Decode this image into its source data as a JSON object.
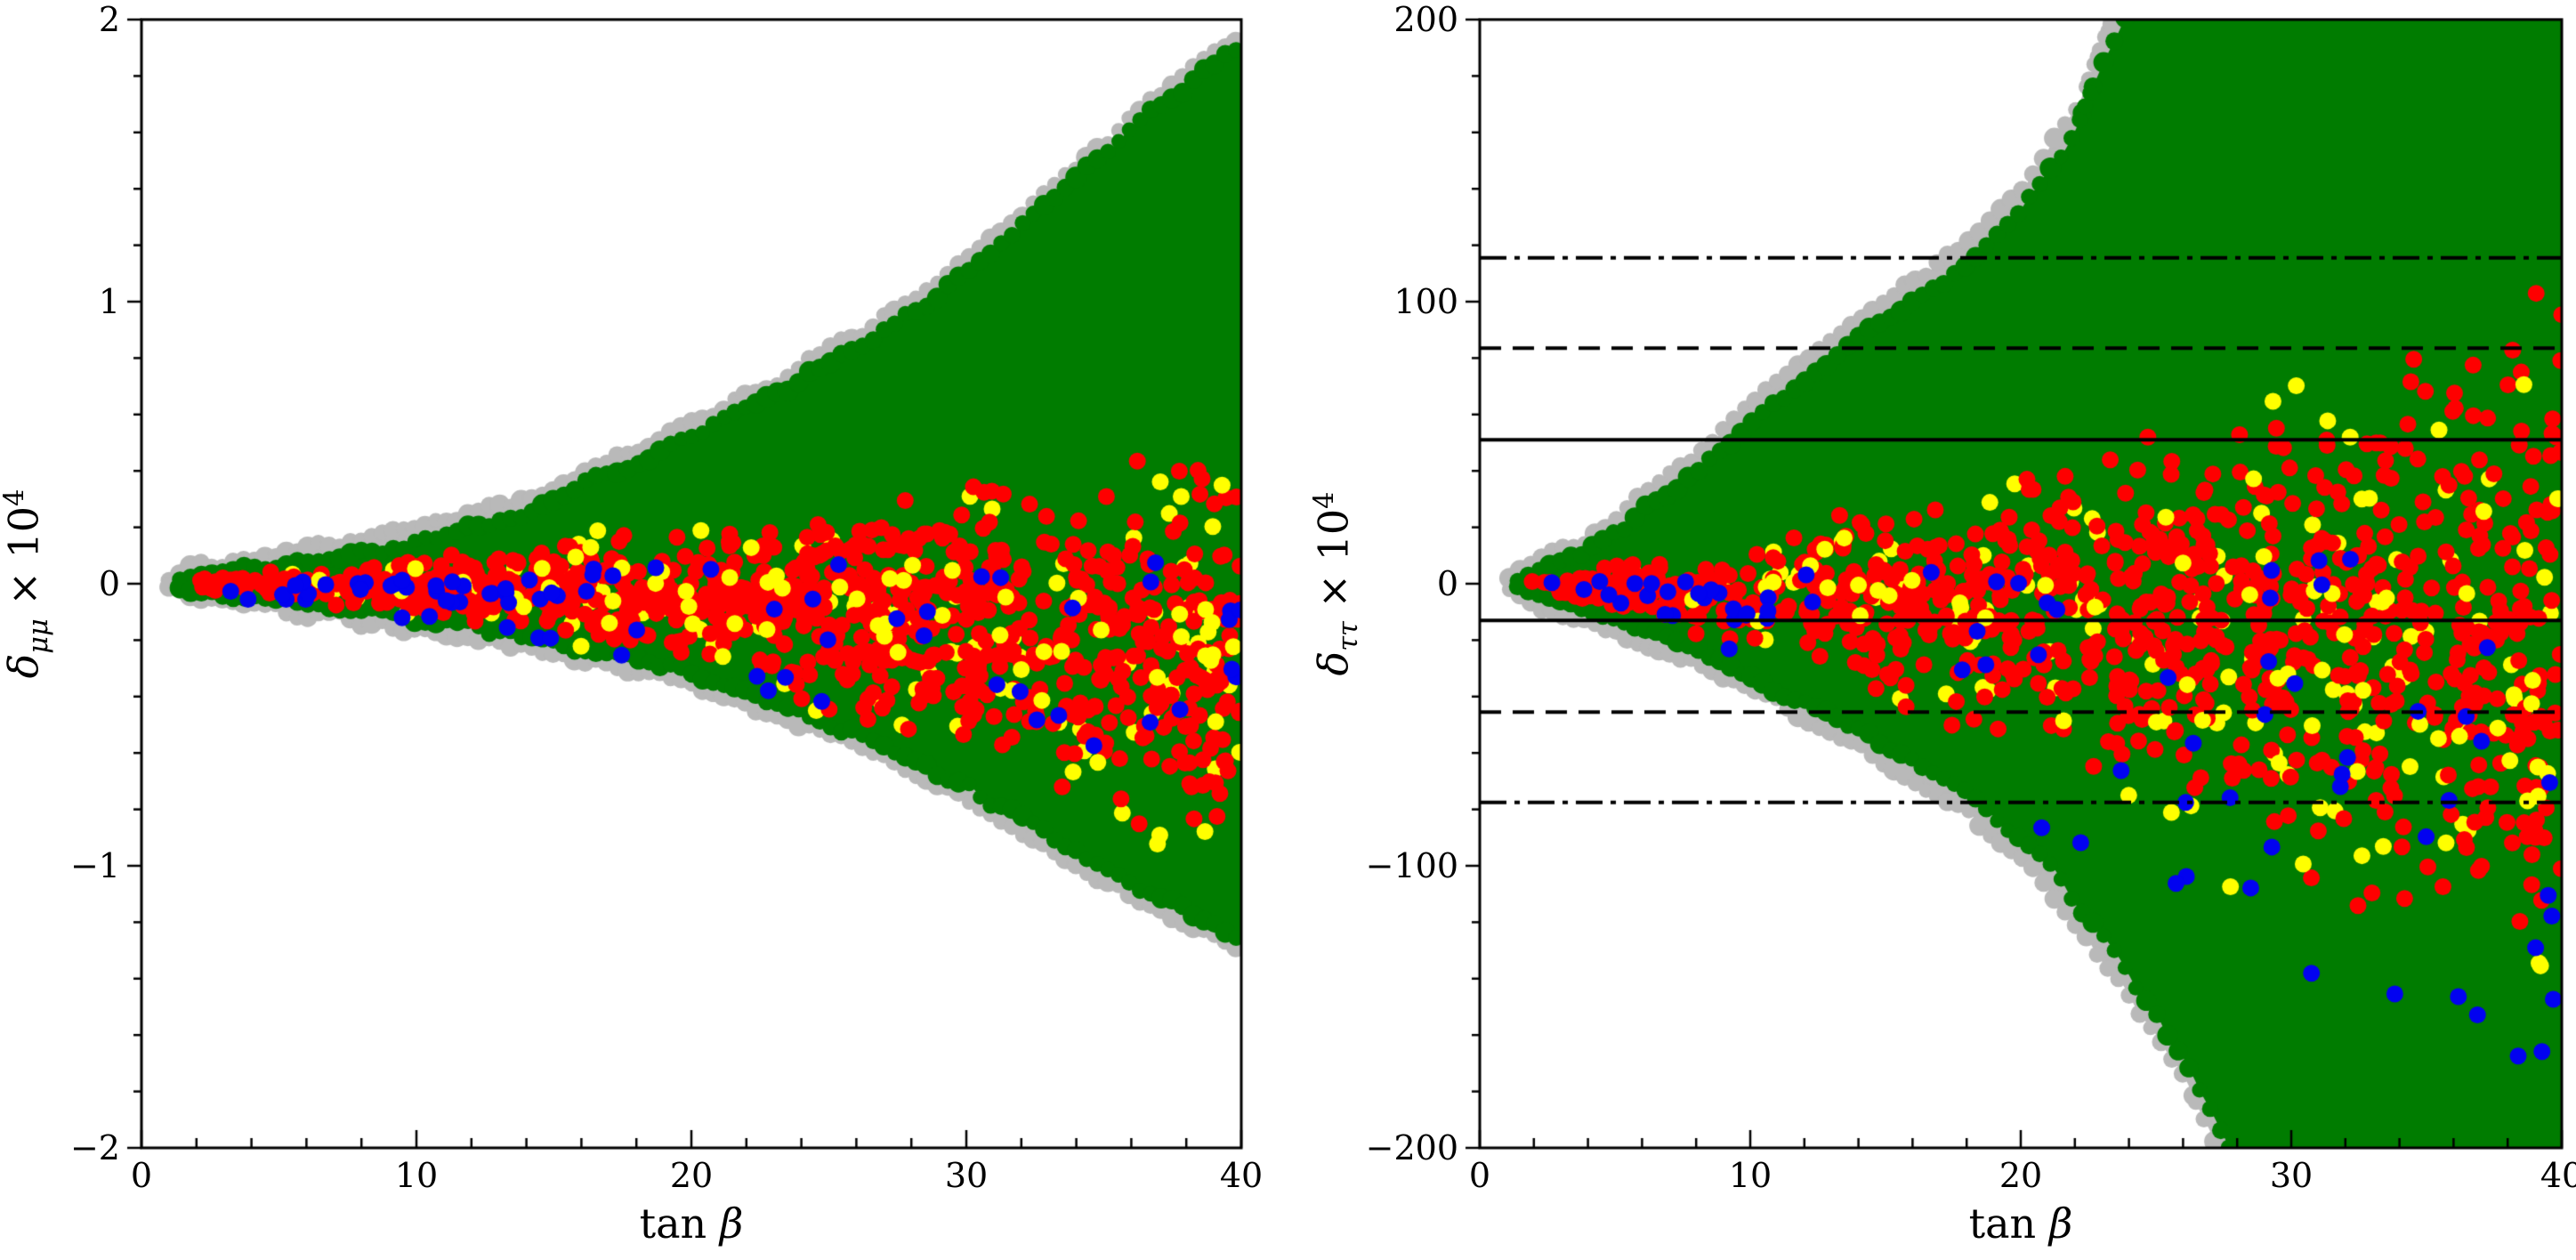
{
  "figure": {
    "background": "#ffffff",
    "frame_color": "#000000"
  },
  "chart_data": [
    {
      "id": "left",
      "type": "scatter",
      "xlabel": {
        "roman": "tan ",
        "italic": "β"
      },
      "ylabel": {
        "symbol": "δ",
        "sub": "μμ",
        "rest": " × 10",
        "exp": "4"
      },
      "xlim": [
        0,
        40
      ],
      "ylim": [
        -2,
        2
      ],
      "xticks": {
        "majors": [
          0,
          10,
          20,
          30,
          40
        ],
        "labels": [
          "0",
          "10",
          "20",
          "30",
          "40"
        ],
        "minor_step": 2
      },
      "yticks": {
        "majors": [
          2,
          1,
          0,
          -1,
          -2
        ],
        "labels": [
          "2",
          "1",
          "0",
          "−1",
          "−2"
        ],
        "minor_step": 0.2
      },
      "hlines": [],
      "seed": 13,
      "regions": [
        {
          "name": "gray-envelope",
          "color": "#b9b9b9",
          "t": [
            1.0,
            2,
            4,
            6,
            8,
            10,
            12,
            14,
            16,
            18,
            20,
            22,
            24,
            26,
            28,
            30,
            32,
            34,
            36,
            38,
            40
          ],
          "hi": [
            0.012,
            0.055,
            0.085,
            0.115,
            0.15,
            0.19,
            0.245,
            0.305,
            0.39,
            0.47,
            0.565,
            0.665,
            0.765,
            0.885,
            1.005,
            1.155,
            1.31,
            1.48,
            1.65,
            1.81,
            1.95
          ],
          "lo": [
            -0.012,
            -0.055,
            -0.08,
            -0.1,
            -0.13,
            -0.16,
            -0.19,
            -0.23,
            -0.27,
            -0.31,
            -0.36,
            -0.425,
            -0.495,
            -0.575,
            -0.665,
            -0.765,
            -0.885,
            -1.0,
            -1.1,
            -1.2,
            -1.29
          ]
        },
        {
          "name": "green-region",
          "color": "#007c00",
          "t": [
            1.4,
            2,
            4,
            6,
            8,
            10,
            12,
            14,
            16,
            18,
            20,
            22,
            24,
            26,
            28,
            30,
            32,
            34,
            36,
            38,
            40
          ],
          "hi": [
            0.015,
            0.03,
            0.055,
            0.08,
            0.11,
            0.15,
            0.2,
            0.26,
            0.35,
            0.43,
            0.52,
            0.62,
            0.72,
            0.84,
            0.96,
            1.11,
            1.27,
            1.44,
            1.61,
            1.77,
            1.91
          ],
          "lo": [
            -0.015,
            -0.03,
            -0.05,
            -0.07,
            -0.095,
            -0.12,
            -0.15,
            -0.19,
            -0.23,
            -0.27,
            -0.32,
            -0.38,
            -0.45,
            -0.53,
            -0.62,
            -0.72,
            -0.84,
            -0.96,
            -1.06,
            -1.16,
            -1.25
          ]
        }
      ],
      "scatter": [
        {
          "name": "yellow-under",
          "color": "#ffff00",
          "count": 95,
          "r": 9.5,
          "tmin": 2.5,
          "tmax": 40,
          "tbias": 0.6,
          "dist": "tri",
          "t": [
            2,
            5,
            10,
            15,
            20,
            25,
            30,
            35,
            40
          ],
          "hi": [
            0.03,
            0.06,
            0.11,
            0.18,
            0.25,
            0.33,
            0.42,
            0.5,
            0.58
          ],
          "lo": [
            -0.035,
            -0.07,
            -0.13,
            -0.23,
            -0.38,
            -0.55,
            -0.75,
            -0.92,
            -1.08
          ]
        },
        {
          "name": "red",
          "color": "#fe0000",
          "count": 900,
          "r": 9.5,
          "tmin": 1.8,
          "tmax": 40,
          "tbias": 0.72,
          "dist": "tri",
          "t": [
            2,
            5,
            10,
            15,
            20,
            25,
            30,
            35,
            40
          ],
          "hi": [
            0.025,
            0.05,
            0.1,
            0.16,
            0.22,
            0.29,
            0.37,
            0.45,
            0.52
          ],
          "lo": [
            -0.03,
            -0.06,
            -0.11,
            -0.2,
            -0.33,
            -0.47,
            -0.63,
            -0.82,
            -1.0
          ]
        },
        {
          "name": "yellow-over",
          "color": "#ffff00",
          "count": 60,
          "r": 9.5,
          "tmin": 6,
          "tmax": 40,
          "tbias": 0.6,
          "dist": "tri",
          "t": [
            2,
            5,
            10,
            15,
            20,
            25,
            30,
            35,
            40
          ],
          "hi": [
            0.03,
            0.06,
            0.11,
            0.18,
            0.25,
            0.33,
            0.42,
            0.5,
            0.58
          ],
          "lo": [
            -0.035,
            -0.07,
            -0.13,
            -0.23,
            -0.38,
            -0.55,
            -0.75,
            -0.92,
            -1.08
          ]
        },
        {
          "name": "blue-low-tanb",
          "color": "#0202f0",
          "count": 26,
          "r": 9.5,
          "tmin": 3,
          "tmax": 14,
          "tbias": 1,
          "dist": "uni",
          "t": [
            3,
            14
          ],
          "hi": [
            0.012,
            0.02
          ],
          "lo": [
            -0.06,
            -0.095
          ]
        },
        {
          "name": "blue-spread",
          "color": "#0202f0",
          "count": 48,
          "r": 9.5,
          "tmin": 9,
          "tmax": 40,
          "tbias": 0.8,
          "dist": "uni",
          "t": [
            9,
            20,
            30,
            40
          ],
          "hi": [
            0.04,
            0.06,
            0.08,
            0.1
          ],
          "lo": [
            -0.17,
            -0.34,
            -0.55,
            -0.78
          ]
        }
      ]
    },
    {
      "id": "right",
      "type": "scatter",
      "xlabel": {
        "roman": "tan ",
        "italic": "β"
      },
      "ylabel": {
        "symbol": "δ",
        "sub": "ττ",
        "rest": " × 10",
        "exp": "4"
      },
      "xlim": [
        0,
        40
      ],
      "ylim": [
        -200,
        200
      ],
      "xticks": {
        "majors": [
          0,
          10,
          20,
          30,
          40
        ],
        "labels": [
          "0",
          "10",
          "20",
          "30",
          "40"
        ],
        "minor_step": 2
      },
      "yticks": {
        "majors": [
          200,
          100,
          0,
          -100,
          -200
        ],
        "labels": [
          "200",
          "100",
          "0",
          "−100",
          "−200"
        ],
        "minor_step": 20
      },
      "hlines": [
        {
          "y": 115.5,
          "style": "dashdot"
        },
        {
          "y": 83.5,
          "style": "dashed"
        },
        {
          "y": 51.0,
          "style": "solid"
        },
        {
          "y": -13.0,
          "style": "solid"
        },
        {
          "y": -45.5,
          "style": "dashed"
        },
        {
          "y": -77.5,
          "style": "dashdot"
        }
      ],
      "seed": 29,
      "regions": [
        {
          "name": "gray-envelope",
          "color": "#b9b9b9",
          "t": [
            1.1,
            2,
            4,
            6,
            8,
            10,
            12,
            14,
            16,
            18,
            20,
            22,
            24,
            26,
            28,
            30,
            35,
            40
          ],
          "hi": [
            2,
            7,
            16,
            30,
            46,
            63,
            79,
            94,
            107,
            120,
            140,
            168,
            214,
            274,
            350,
            450,
            810,
            1410
          ],
          "lo": [
            -2,
            -7,
            -14,
            -21,
            -28,
            -38,
            -48,
            -58,
            -69,
            -81,
            -97,
            -120,
            -146,
            -176,
            -214,
            -270,
            -510,
            -910
          ]
        },
        {
          "name": "green-region",
          "color": "#007c00",
          "t": [
            1.4,
            2,
            4,
            6,
            8,
            10,
            12,
            14,
            16,
            18,
            20,
            22,
            24,
            26,
            28,
            30,
            35,
            40
          ],
          "hi": [
            1,
            4,
            12,
            25,
            40,
            57,
            72,
            87,
            100,
            113,
            132,
            160,
            206,
            266,
            342,
            442,
            802,
            1402
          ],
          "lo": [
            -1,
            -4,
            -10,
            -16,
            -23,
            -32,
            -42,
            -52,
            -62,
            -74,
            -90,
            -112,
            -138,
            -168,
            -206,
            -262,
            -502,
            -902
          ]
        }
      ],
      "scatter": [
        {
          "name": "yellow-under",
          "color": "#ffff00",
          "count": 100,
          "r": 9.5,
          "tmin": 2.5,
          "tmax": 40,
          "tbias": 0.55,
          "dist": "tri",
          "t": [
            2,
            5,
            10,
            15,
            20,
            25,
            30,
            35,
            40
          ],
          "hi": [
            4,
            9,
            22,
            33,
            45,
            60,
            82,
            102,
            114
          ],
          "lo": [
            -5,
            -12,
            -30,
            -48,
            -68,
            -95,
            -125,
            -155,
            -180
          ]
        },
        {
          "name": "red",
          "color": "#fe0000",
          "count": 900,
          "r": 9.5,
          "tmin": 1.8,
          "tmax": 40,
          "tbias": 0.7,
          "dist": "tri",
          "t": [
            2,
            5,
            10,
            15,
            20,
            25,
            30,
            35,
            40
          ],
          "hi": [
            3,
            8,
            20,
            30,
            42,
            55,
            75,
            98,
            115
          ],
          "lo": [
            -4,
            -10,
            -28,
            -45,
            -62,
            -82,
            -105,
            -132,
            -158
          ]
        },
        {
          "name": "yellow-over",
          "color": "#ffff00",
          "count": 62,
          "r": 9.5,
          "tmin": 6,
          "tmax": 40,
          "tbias": 0.55,
          "dist": "tri",
          "t": [
            2,
            5,
            10,
            15,
            20,
            25,
            30,
            35,
            40
          ],
          "hi": [
            4,
            9,
            22,
            33,
            45,
            60,
            82,
            102,
            114
          ],
          "lo": [
            -5,
            -12,
            -30,
            -48,
            -68,
            -95,
            -125,
            -155,
            -180
          ]
        },
        {
          "name": "blue-low-tanb",
          "color": "#0202f0",
          "count": 22,
          "r": 9.5,
          "tmin": 2.5,
          "tmax": 11,
          "tbias": 1,
          "dist": "uni",
          "t": [
            2.5,
            11
          ],
          "hi": [
            1,
            3
          ],
          "lo": [
            -8,
            -14
          ]
        },
        {
          "name": "blue-spread",
          "color": "#0202f0",
          "count": 52,
          "r": 9.5,
          "tmin": 9,
          "tmax": 40,
          "tbias": 0.75,
          "dist": "uni",
          "t": [
            9,
            20,
            30,
            40
          ],
          "hi": [
            6,
            9,
            11,
            13
          ],
          "lo": [
            -42,
            -88,
            -135,
            -178
          ]
        }
      ]
    }
  ]
}
